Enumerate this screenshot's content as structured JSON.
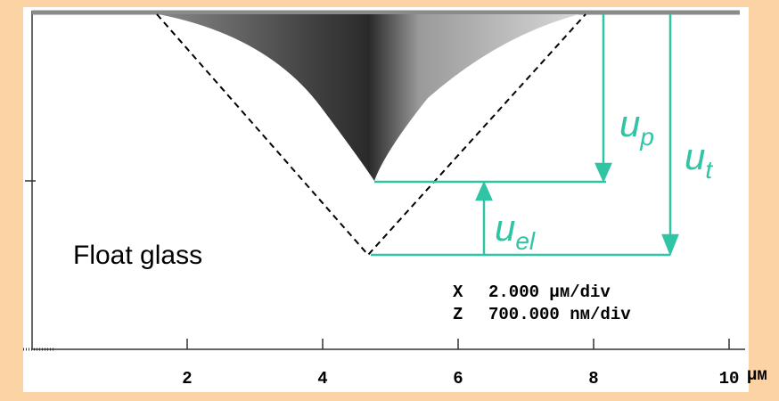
{
  "material": "Float glass",
  "arrows": {
    "plastic": {
      "symbol": "u",
      "subscript": "p"
    },
    "total": {
      "symbol": "u",
      "subscript": "t"
    },
    "elastic": {
      "symbol": "u",
      "subscript": "el"
    }
  },
  "scale": {
    "x": {
      "axis": "X",
      "value": "2.000 µм/div"
    },
    "z": {
      "axis": "Z",
      "value": "700.000 nм/div"
    }
  },
  "x_axis": {
    "ticks": [
      2,
      4,
      6,
      8,
      10
    ],
    "unit": "µм"
  }
}
